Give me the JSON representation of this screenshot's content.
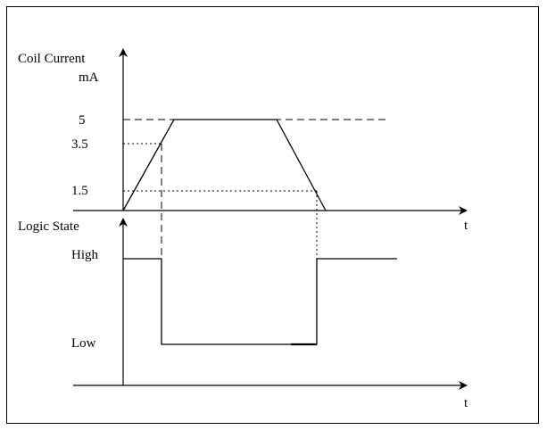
{
  "top_graph": {
    "ylabel_line1": "Coil Current",
    "ylabel_line2": "mA",
    "xlabel": "t",
    "levels": [
      "5",
      "3.5",
      "1.5"
    ]
  },
  "bottom_graph": {
    "ylabel": "Logic State",
    "xlabel": "t",
    "levels": [
      "High",
      "Low"
    ]
  },
  "colors": {
    "line": "#000000",
    "background": "#ffffff"
  }
}
